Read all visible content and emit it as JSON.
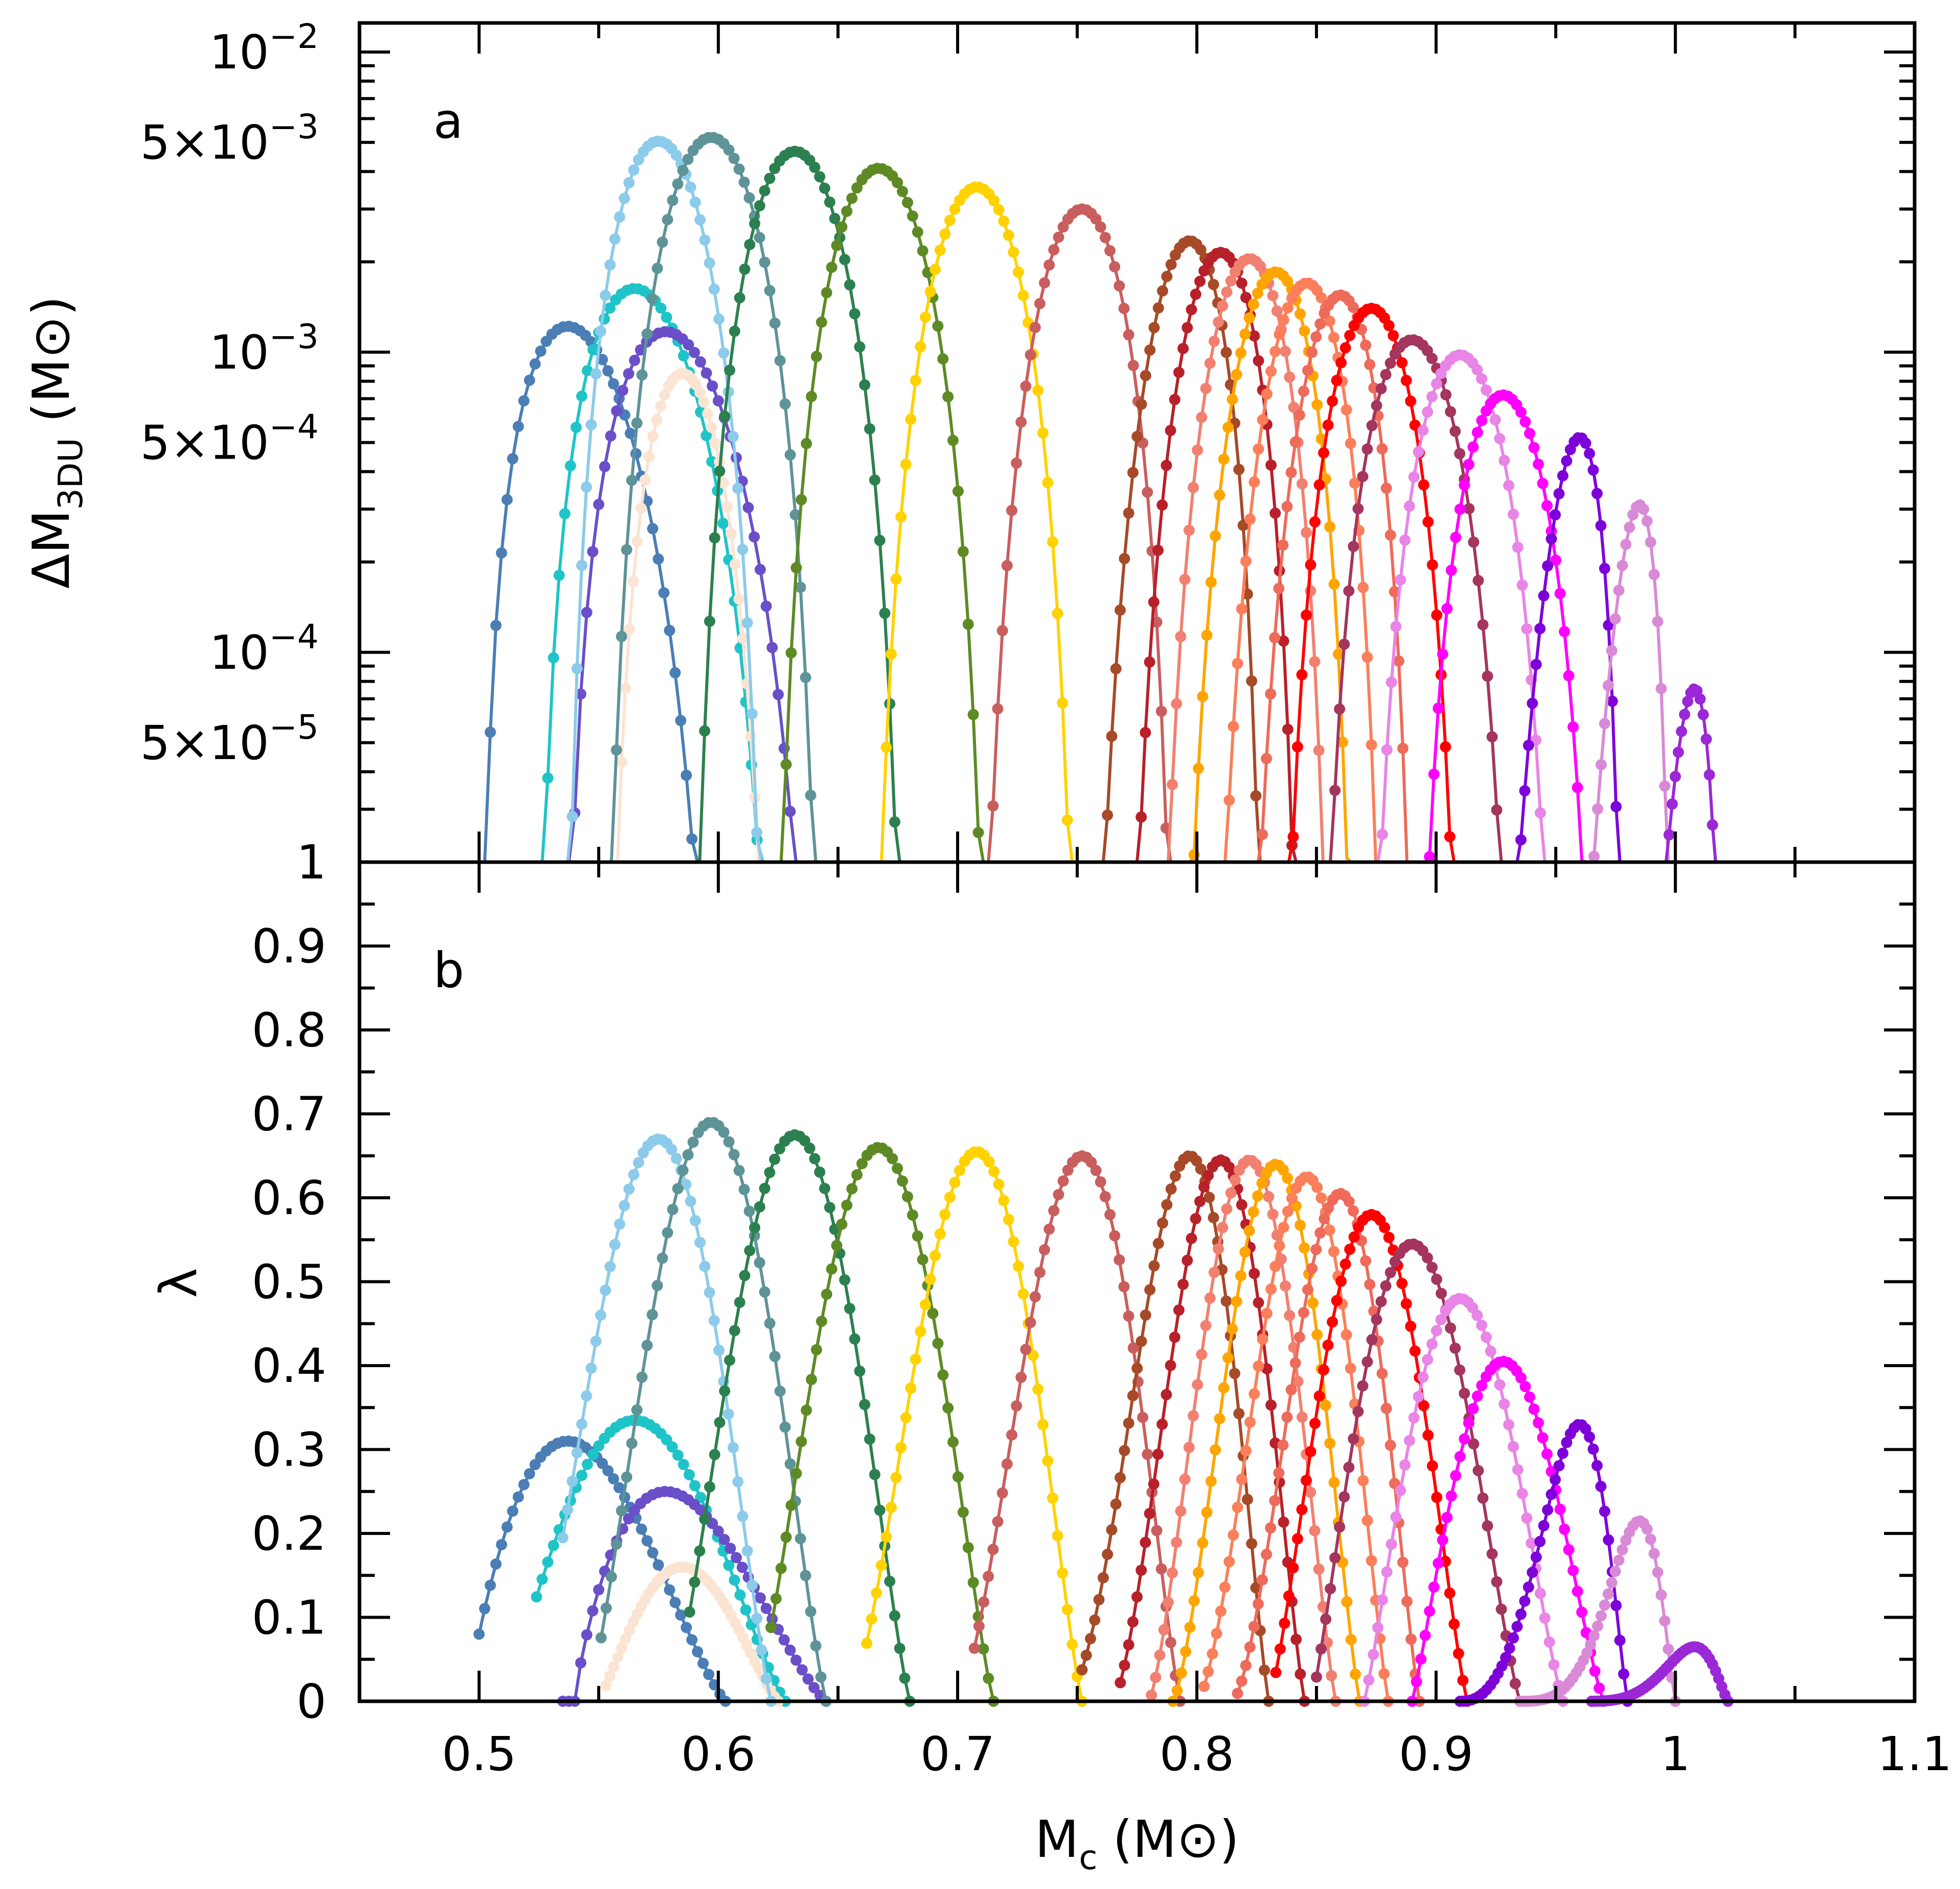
{
  "chart_data": {
    "type": "line",
    "x_axis": {
      "label_main": "M",
      "label_sub": "c",
      "label_unit": "(M",
      "label_unit_close": ")",
      "range": [
        0.45,
        1.1
      ],
      "ticks": [
        0.5,
        0.6,
        0.7,
        0.8,
        0.9,
        1,
        1.1
      ],
      "tick_labels": [
        "0.5",
        "0.6",
        "0.7",
        "0.8",
        "0.9",
        "1",
        "1.1"
      ]
    },
    "panels": [
      {
        "id": "a",
        "label": "a",
        "scale": "log",
        "ylabel_main": "ΔM",
        "ylabel_sub": "3DU",
        "ylabel_unit": "(M",
        "ylabel_unit_close": ")",
        "ylim": [
          2e-05,
          0.0125
        ],
        "ytick_labels": [
          {
            "value": 0.01,
            "base": "10",
            "exp": "−2"
          },
          {
            "value": 0.005,
            "base": "5×10",
            "exp": "−3"
          },
          {
            "value": 0.001,
            "base": "10",
            "exp": "−3"
          },
          {
            "value": 0.0005,
            "base": "5×10",
            "exp": "−4"
          },
          {
            "value": 0.0001,
            "base": "10",
            "exp": "−4"
          },
          {
            "value": 5e-05,
            "base": "5×10",
            "exp": "−5"
          }
        ]
      },
      {
        "id": "b",
        "label": "b",
        "scale": "linear",
        "ylabel": "λ",
        "ylim": [
          0,
          1
        ],
        "yticks": [
          0,
          0.1,
          0.2,
          0.3,
          0.4,
          0.5,
          0.6,
          0.7,
          0.8,
          0.9,
          1
        ],
        "ytick_labels": [
          "0",
          "0.1",
          "0.2",
          "0.3",
          "0.4",
          "0.5",
          "0.6",
          "0.7",
          "0.8",
          "0.9",
          "1"
        ]
      }
    ],
    "series": [
      {
        "color": "#4a7eb5",
        "start": 0.5,
        "end": 0.603,
        "peak_m": 0.537,
        "dm_peak": 0.00122,
        "lam_peak": 0.31,
        "lam_start": 0.495
      },
      {
        "color": "#1fc4c8",
        "start": 0.524,
        "end": 0.628,
        "peak_m": 0.565,
        "dm_peak": 0.00163,
        "lam_peak": 0.335,
        "lam_start": 0.51
      },
      {
        "color": "#6a4fc9",
        "start": 0.535,
        "end": 0.645,
        "peak_m": 0.578,
        "dm_peak": 0.00117,
        "lam_peak": 0.25,
        "lam_start": 0.54
      },
      {
        "color": "#fbe4d2",
        "start": 0.553,
        "end": 0.625,
        "peak_m": 0.585,
        "dm_peak": 0.00085,
        "lam_peak": 0.16,
        "lam_start": 0.55
      },
      {
        "color": "#8ccbea",
        "start": 0.535,
        "end": 0.622,
        "peak_m": 0.575,
        "dm_peak": 0.00505,
        "lam_peak": 0.67,
        "lam_start": 0.52
      },
      {
        "color": "#5e9397",
        "start": 0.551,
        "end": 0.645,
        "peak_m": 0.597,
        "dm_peak": 0.0052,
        "lam_peak": 0.69,
        "lam_start": 0.545
      },
      {
        "color": "#2c8050",
        "start": 0.588,
        "end": 0.68,
        "peak_m": 0.632,
        "dm_peak": 0.00467,
        "lam_peak": 0.675,
        "lam_start": 0.58
      },
      {
        "color": "#5e8a25",
        "start": 0.622,
        "end": 0.715,
        "peak_m": 0.667,
        "dm_peak": 0.0041,
        "lam_peak": 0.66,
        "lam_start": 0.615
      },
      {
        "color": "#ffd200",
        "start": 0.662,
        "end": 0.752,
        "peak_m": 0.708,
        "dm_peak": 0.00355,
        "lam_peak": 0.655,
        "lam_start": 0.655
      },
      {
        "color": "#c95e5e",
        "start": 0.707,
        "end": 0.793,
        "peak_m": 0.752,
        "dm_peak": 0.003,
        "lam_peak": 0.65,
        "lam_start": 0.7
      },
      {
        "color": "#a64a28",
        "start": 0.752,
        "end": 0.83,
        "peak_m": 0.797,
        "dm_peak": 0.00235,
        "lam_peak": 0.65,
        "lam_start": 0.745
      },
      {
        "color": "#b8202a",
        "start": 0.768,
        "end": 0.845,
        "peak_m": 0.81,
        "dm_peak": 0.00215,
        "lam_peak": 0.645,
        "lam_start": 0.765
      },
      {
        "color": "#f28070",
        "start": 0.781,
        "end": 0.858,
        "peak_m": 0.822,
        "dm_peak": 0.00205,
        "lam_peak": 0.645,
        "lam_start": 0.78
      },
      {
        "color": "#ffa500",
        "start": 0.79,
        "end": 0.868,
        "peak_m": 0.833,
        "dm_peak": 0.00185,
        "lam_peak": 0.64,
        "lam_start": 0.79
      },
      {
        "color": "#fa7f5a",
        "start": 0.803,
        "end": 0.88,
        "peak_m": 0.846,
        "dm_peak": 0.0017,
        "lam_peak": 0.625,
        "lam_start": 0.8
      },
      {
        "color": "#ee6a5a",
        "start": 0.817,
        "end": 0.893,
        "peak_m": 0.86,
        "dm_peak": 0.00155,
        "lam_peak": 0.605,
        "lam_start": 0.815
      },
      {
        "color": "#ff0000",
        "start": 0.833,
        "end": 0.913,
        "peak_m": 0.873,
        "dm_peak": 0.0014,
        "lam_peak": 0.58,
        "lam_start": 0.83
      },
      {
        "color": "#a3355e",
        "start": 0.85,
        "end": 0.935,
        "peak_m": 0.89,
        "dm_peak": 0.0011,
        "lam_peak": 0.545,
        "lam_start": 0.848
      },
      {
        "color": "#e885e6",
        "start": 0.87,
        "end": 0.953,
        "peak_m": 0.91,
        "dm_peak": 0.00098,
        "lam_peak": 0.48,
        "lam_start": 0.87
      },
      {
        "color": "#ff00ff",
        "start": 0.89,
        "end": 0.97,
        "peak_m": 0.928,
        "dm_peak": 0.00072,
        "lam_peak": 0.405,
        "lam_start": 0.89
      },
      {
        "color": "#7e00d9",
        "start": 0.91,
        "end": 0.98,
        "peak_m": 0.96,
        "dm_peak": 0.00052,
        "lam_peak": 0.33,
        "lam_start": 0.91
      },
      {
        "color": "#d98ad6",
        "start": 0.935,
        "end": 1.0,
        "peak_m": 0.985,
        "dm_peak": 0.00031,
        "lam_peak": 0.215,
        "lam_start": 0.935
      },
      {
        "color": "#9a28d6",
        "start": 0.965,
        "end": 1.022,
        "peak_m": 1.008,
        "dm_peak": 7.55e-05,
        "lam_peak": 0.065,
        "lam_start": 0.963
      }
    ]
  }
}
